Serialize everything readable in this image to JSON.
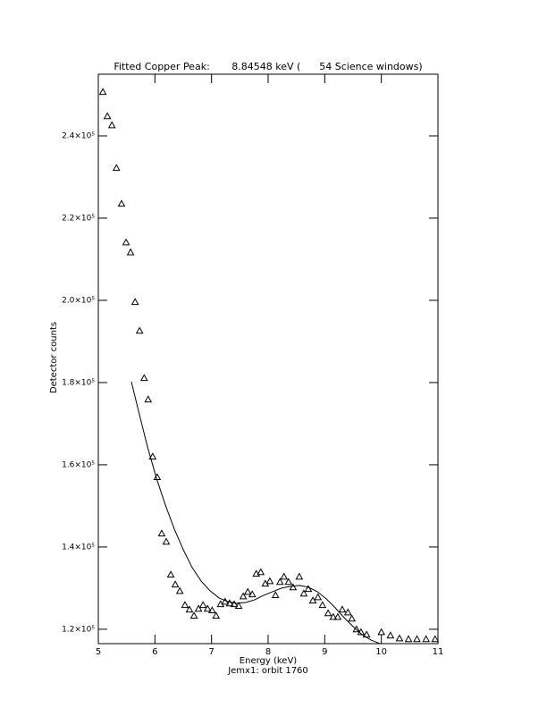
{
  "chart_data": {
    "type": "scatter",
    "title": "Fitted Copper Peak:       8.84548 keV (      54 Science windows)",
    "x_label": "Energy (keV)",
    "subtitle": "Jemx1: orbit 1760",
    "y_label": "Detector counts",
    "xlim": [
      5,
      11
    ],
    "ylim": [
      116500,
      255000
    ],
    "xticks": [
      5,
      6,
      7,
      8,
      9,
      10,
      11
    ],
    "yticks": [
      {
        "value": 120000,
        "label": "1.2×10⁵"
      },
      {
        "value": 140000,
        "label": "1.4×10⁵"
      },
      {
        "value": 160000,
        "label": "1.6×10⁵"
      },
      {
        "value": 180000,
        "label": "1.8×10⁵"
      },
      {
        "value": 200000,
        "label": "2.0×10⁵"
      },
      {
        "value": 220000,
        "label": "2.2×10⁵"
      },
      {
        "value": 240000,
        "label": "2.4×10⁵"
      }
    ],
    "color": "#000000",
    "series": [
      {
        "type": "scatter",
        "x": [
          5.08,
          5.16,
          5.24,
          5.32,
          5.41,
          5.49,
          5.57,
          5.65,
          5.73,
          5.81,
          5.88,
          5.96,
          6.04,
          6.12,
          6.2,
          6.28,
          6.36,
          6.44,
          6.53,
          6.61,
          6.69,
          6.77,
          6.85,
          6.93,
          7.01,
          7.08,
          7.16,
          7.24,
          7.32,
          7.4,
          7.48,
          7.56,
          7.64,
          7.72,
          7.79,
          7.87,
          7.95,
          8.03,
          8.13,
          8.21,
          8.28,
          8.36,
          8.44,
          8.55,
          8.63,
          8.71,
          8.79,
          8.88,
          8.96,
          9.06,
          9.15,
          9.23,
          9.31,
          9.41,
          9.48,
          9.56,
          9.64,
          9.74,
          10.0,
          10.16,
          10.32,
          10.48,
          10.63,
          10.79,
          10.95
        ],
        "values": [
          250700,
          244800,
          242600,
          232200,
          223500,
          214100,
          211700,
          199600,
          192600,
          181100,
          175900,
          162000,
          157000,
          143300,
          141300,
          133300,
          130900,
          129300,
          125900,
          124800,
          123300,
          125000,
          125900,
          125000,
          124600,
          123300,
          126100,
          126700,
          126300,
          126100,
          125700,
          128000,
          129100,
          128500,
          133500,
          133900,
          131100,
          131700,
          128300,
          131500,
          132800,
          131500,
          130200,
          132800,
          128700,
          129800,
          127000,
          127800,
          125900,
          123900,
          123000,
          123000,
          124800,
          124100,
          122600,
          120000,
          119300,
          118700,
          119300,
          118500,
          117800,
          117600,
          117600,
          117600,
          117600
        ]
      },
      {
        "type": "line",
        "x": [
          5.584,
          5.711,
          5.869,
          6.027,
          6.185,
          6.343,
          6.501,
          6.658,
          6.816,
          6.974,
          7.132,
          7.29,
          7.448,
          7.606,
          7.763,
          7.921,
          8.079,
          8.237,
          8.395,
          8.553,
          8.711,
          8.869,
          9.027,
          9.185,
          9.342,
          9.5,
          9.658,
          9.816,
          9.974
        ],
        "values": [
          180220,
          173040,
          164350,
          156740,
          150220,
          144350,
          139350,
          135000,
          131740,
          129350,
          127610,
          126740,
          126300,
          126520,
          127170,
          128260,
          129130,
          130000,
          130430,
          130650,
          130220,
          129130,
          127390,
          125220,
          122830,
          120650,
          118700,
          117390,
          116520
        ]
      }
    ]
  }
}
